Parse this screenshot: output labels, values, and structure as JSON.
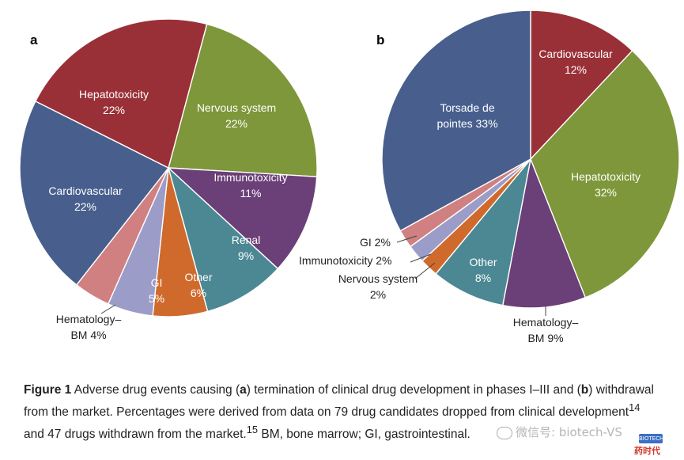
{
  "chart_data": [
    {
      "type": "pie",
      "panel_label": "a",
      "title": "Termination of clinical drug development in phases I–III",
      "slices": [
        {
          "key": "nervous",
          "label": [
            "Nervous system",
            "22%"
          ],
          "value": 22,
          "color": "#7e973a",
          "label_pos": "inside"
        },
        {
          "key": "immuno",
          "label": [
            "Immunotoxicity",
            "11%"
          ],
          "value": 11,
          "color": "#6b3f78",
          "label_pos": "inside"
        },
        {
          "key": "renal",
          "label": [
            "Renal",
            "9%"
          ],
          "value": 9,
          "color": "#4b8893",
          "label_pos": "inside"
        },
        {
          "key": "other",
          "label": [
            "Other",
            "6%"
          ],
          "value": 6,
          "color": "#d06a2c",
          "label_pos": "inside"
        },
        {
          "key": "gi",
          "label": [
            "GI",
            "5%"
          ],
          "value": 5,
          "color": "#9c9cc9",
          "label_pos": "inside"
        },
        {
          "key": "hema",
          "label": [
            "Hematology–",
            "BM 4%"
          ],
          "value": 4,
          "color": "#d08080",
          "label_pos": "outside"
        },
        {
          "key": "cardio",
          "label": [
            "Cardiovascular",
            "22%"
          ],
          "value": 22,
          "color": "#485f8e",
          "label_pos": "inside"
        },
        {
          "key": "hepato",
          "label": [
            "Hepatotoxicity",
            "22%"
          ],
          "value": 22,
          "color": "#9a3037",
          "label_pos": "inside"
        }
      ]
    },
    {
      "type": "pie",
      "panel_label": "b",
      "title": "Withdrawal from the market",
      "slices": [
        {
          "key": "cardio",
          "label": [
            "Cardiovascular",
            "12%"
          ],
          "value": 12,
          "color": "#9a3037",
          "label_pos": "inside"
        },
        {
          "key": "hepato",
          "label": [
            "Hepatotoxicity",
            "32%"
          ],
          "value": 32,
          "color": "#7e973a",
          "label_pos": "inside"
        },
        {
          "key": "hema",
          "label": [
            "Hematology–",
            "BM 9%"
          ],
          "value": 9,
          "color": "#6b3f78",
          "label_pos": "outside"
        },
        {
          "key": "other",
          "label": [
            "Other",
            "8%"
          ],
          "value": 8,
          "color": "#4b8893",
          "label_pos": "inside"
        },
        {
          "key": "nervous",
          "label": [
            "Nervous system",
            "2%"
          ],
          "value": 2,
          "color": "#d06a2c",
          "label_pos": "outside"
        },
        {
          "key": "immuno",
          "label": [
            "Immunotoxicity 2%"
          ],
          "value": 2,
          "color": "#9c9cc9",
          "label_pos": "outside"
        },
        {
          "key": "gi",
          "label": [
            "GI 2%"
          ],
          "value": 2,
          "color": "#d08080",
          "label_pos": "outside"
        },
        {
          "key": "torsade",
          "label": [
            "Torsade de",
            "pointes 33%"
          ],
          "value": 33,
          "color": "#485f8e",
          "label_pos": "inside"
        }
      ]
    }
  ],
  "caption": {
    "figure_label": "Figure 1",
    "text_1": " Adverse drug events causing (",
    "a": "a",
    "text_2": ") termination of clinical drug development in phases I–III and (",
    "b": "b",
    "text_3": ") withdrawal from the market. Percentages were derived from data on 79 drug candidates dropped from clinical development",
    "ref1": "14",
    "text_4": " and 47 drugs withdrawn from the market.",
    "ref2": "15",
    "text_5": " BM, bone marrow; GI, gastrointestinal."
  },
  "watermark": {
    "text": "微信号: biotech-VS",
    "logo_badge": "BIOTECH",
    "logo_text": "药时代"
  }
}
